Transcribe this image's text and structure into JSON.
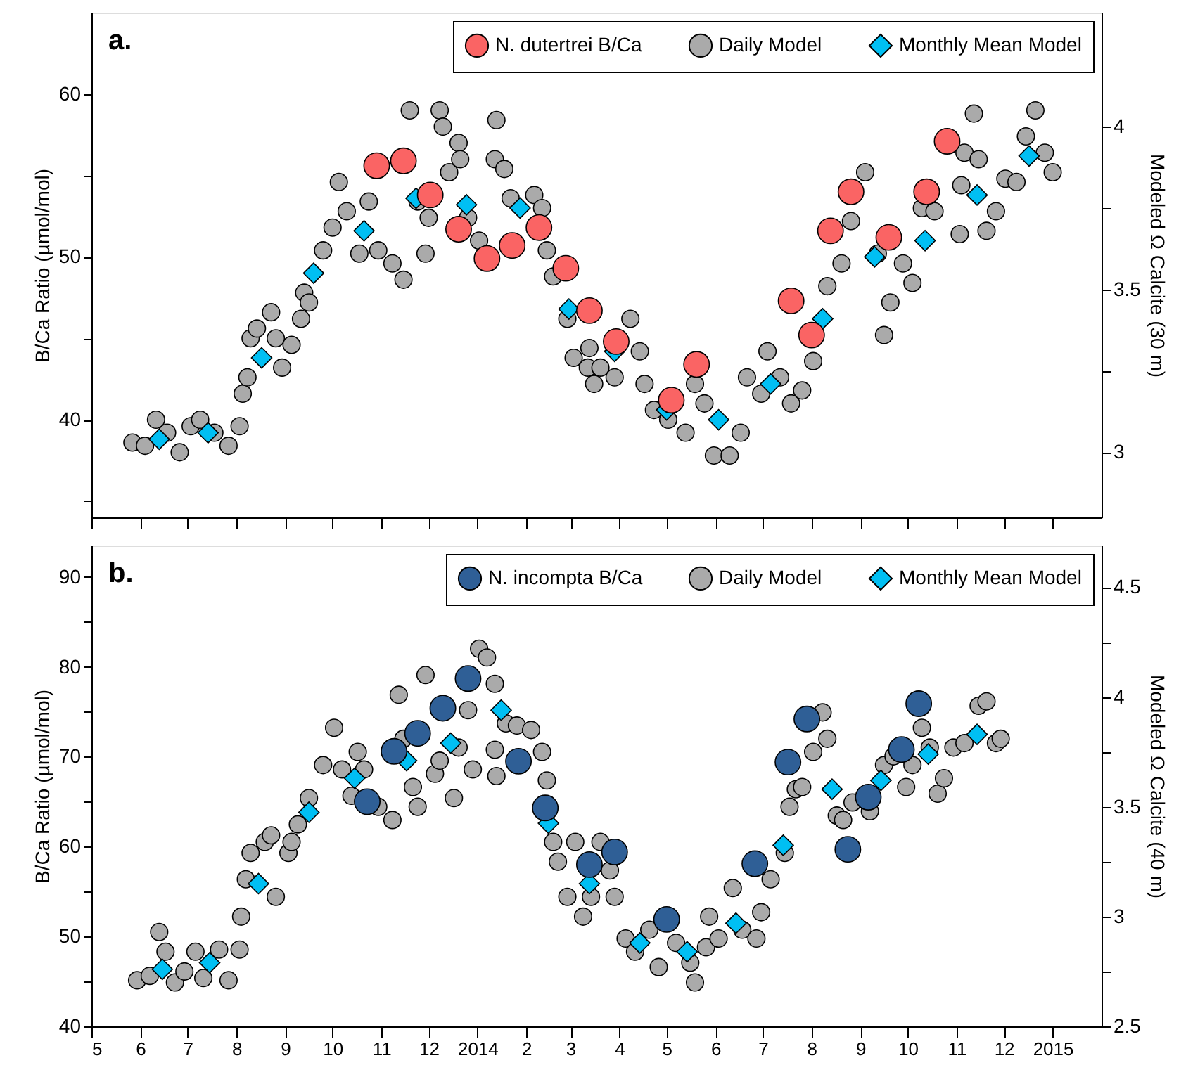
{
  "chart_data": [
    {
      "type": "scatter",
      "annotations": [
        "a."
      ],
      "ylabel": "B/Ca Ratio (µmol/mol)",
      "y2label": "Modeled Ω Calcite (30 m)",
      "xlim": [
        "2013-05-01",
        "2015-02-01"
      ],
      "xticks": [
        {
          "value": "2013-05-01",
          "label": null
        },
        {
          "value": "2013-06-01",
          "label": null
        },
        {
          "value": "2013-07-01",
          "label": null
        },
        {
          "value": "2013-08-01",
          "label": null
        },
        {
          "value": "2013-09-01",
          "label": null
        },
        {
          "value": "2013-10-01",
          "label": null
        },
        {
          "value": "2013-11-01",
          "label": null
        },
        {
          "value": "2013-12-01",
          "label": null
        },
        {
          "value": "2014-01-01",
          "label": null
        },
        {
          "value": "2014-02-01",
          "label": null
        },
        {
          "value": "2014-03-01",
          "label": null
        },
        {
          "value": "2014-04-01",
          "label": null
        },
        {
          "value": "2014-05-01",
          "label": null
        },
        {
          "value": "2014-06-01",
          "label": null
        },
        {
          "value": "2014-07-01",
          "label": null
        },
        {
          "value": "2014-08-01",
          "label": null
        },
        {
          "value": "2014-09-01",
          "label": null
        },
        {
          "value": "2014-10-01",
          "label": null
        },
        {
          "value": "2014-11-01",
          "label": null
        },
        {
          "value": "2014-12-01",
          "label": null
        },
        {
          "value": "2015-01-01",
          "label": null
        }
      ],
      "ylim": [
        34,
        65
      ],
      "yticks": [
        {
          "value": 35,
          "label": null
        },
        40,
        {
          "value": 45,
          "label": null
        },
        50,
        {
          "value": 55,
          "label": null
        },
        60
      ],
      "y2lim": [
        2.8,
        4.35
      ],
      "y2ticks": [
        3,
        {
          "value": 3.25,
          "label": null
        },
        3.5,
        {
          "value": 3.75,
          "label": null
        },
        4
      ],
      "tick_labels": "y",
      "legend": "top right",
      "series": [
        {
          "name": "N. dutertrei B/Ca",
          "color": "#fa6464",
          "marker": "circle",
          "x": [
            "2013-10-29",
            "2013-11-15",
            "2013-12-02",
            "2013-12-20",
            "2014-01-07",
            "2014-01-23",
            "2014-02-09",
            "2014-02-26",
            "2014-03-13",
            "2014-03-30",
            "2014-05-04",
            "2014-05-20",
            "2014-07-19",
            "2014-08-01",
            "2014-08-13",
            "2014-08-26",
            "2014-09-19",
            "2014-10-13",
            "2014-10-26"
          ],
          "values": [
            55.6,
            55.9,
            53.8,
            51.7,
            49.9,
            50.7,
            51.8,
            49.3,
            46.7,
            44.8,
            41.2,
            43.4,
            47.3,
            45.2,
            51.6,
            54.0,
            51.2,
            54.0,
            57.1
          ]
        },
        {
          "name": "Daily Model",
          "color": "#aaaaaa",
          "marker": "circle",
          "axis": "y2",
          "x": [
            "2013-05-27",
            "2013-06-04",
            "2013-06-11",
            "2013-06-18",
            "2013-06-26",
            "2013-07-03",
            "2013-07-09",
            "2013-07-18",
            "2013-07-27",
            "2013-08-03",
            "2013-08-05",
            "2013-08-08",
            "2013-08-10",
            "2013-08-14",
            "2013-08-23",
            "2013-08-26",
            "2013-08-30",
            "2013-09-05",
            "2013-09-11",
            "2013-09-13",
            "2013-09-16",
            "2013-09-25",
            "2013-10-01",
            "2013-10-05",
            "2013-10-10",
            "2013-10-18",
            "2013-10-24",
            "2013-10-30",
            "2013-11-08",
            "2013-11-15",
            "2013-11-19",
            "2013-11-24",
            "2013-11-29",
            "2013-12-01",
            "2013-12-08",
            "2013-12-10",
            "2013-12-14",
            "2013-12-20",
            "2013-12-21",
            "2013-12-26",
            "2014-01-02",
            "2014-01-12",
            "2014-01-13",
            "2014-01-18",
            "2014-01-22",
            "2014-02-06",
            "2014-02-11",
            "2014-02-14",
            "2014-02-18",
            "2014-02-27",
            "2014-03-03",
            "2014-03-12",
            "2014-03-13",
            "2014-03-16",
            "2014-03-20",
            "2014-03-29",
            "2014-04-08",
            "2014-04-14",
            "2014-04-17",
            "2014-04-23",
            "2014-05-02",
            "2014-05-13",
            "2014-05-19",
            "2014-05-25",
            "2014-05-31",
            "2014-06-10",
            "2014-06-17",
            "2014-06-21",
            "2014-06-30",
            "2014-07-04",
            "2014-07-12",
            "2014-07-19",
            "2014-07-26",
            "2014-08-02",
            "2014-08-11",
            "2014-08-20",
            "2014-08-26",
            "2014-09-04",
            "2014-09-12",
            "2014-09-16",
            "2014-09-20",
            "2014-09-28",
            "2014-10-04",
            "2014-10-10",
            "2014-10-18",
            "2014-11-03",
            "2014-11-04",
            "2014-11-06",
            "2014-11-12",
            "2014-11-15",
            "2014-11-20",
            "2014-11-26",
            "2014-12-02",
            "2014-12-09",
            "2014-12-15",
            "2014-12-21",
            "2014-12-27",
            "2015-01-01"
          ],
          "values": [
            3.03,
            3.02,
            3.1,
            3.06,
            3.0,
            3.08,
            3.1,
            3.06,
            3.02,
            3.08,
            3.18,
            3.23,
            3.35,
            3.38,
            3.43,
            3.35,
            3.26,
            3.33,
            3.41,
            3.49,
            3.46,
            3.62,
            3.69,
            3.83,
            3.74,
            3.61,
            3.77,
            3.62,
            3.58,
            3.53,
            4.05,
            3.77,
            3.61,
            3.72,
            4.05,
            4.0,
            3.86,
            3.95,
            3.9,
            3.72,
            3.65,
            3.9,
            4.02,
            3.87,
            3.78,
            3.79,
            3.75,
            3.62,
            3.54,
            3.41,
            3.29,
            3.26,
            3.32,
            3.21,
            3.26,
            3.23,
            3.41,
            3.31,
            3.21,
            3.13,
            3.1,
            3.06,
            3.21,
            3.15,
            2.99,
            2.99,
            3.06,
            3.23,
            3.18,
            3.31,
            3.23,
            3.15,
            3.19,
            3.28,
            3.51,
            3.58,
            3.71,
            3.86,
            3.61,
            3.36,
            3.46,
            3.58,
            3.52,
            3.75,
            3.74,
            3.67,
            3.82,
            3.92,
            4.04,
            3.9,
            3.68,
            3.74,
            3.84,
            3.83,
            3.97,
            4.05,
            3.92,
            3.86
          ]
        },
        {
          "name": "Monthly Mean Model",
          "color": "#00bff3",
          "marker": "diamond",
          "axis": "y2",
          "x": [
            "2013-06-13",
            "2013-07-14",
            "2013-08-17",
            "2013-09-19",
            "2013-10-21",
            "2013-11-23",
            "2013-12-25",
            "2014-01-28",
            "2014-02-28",
            "2014-03-29",
            "2014-05-01",
            "2014-06-03",
            "2014-07-06",
            "2014-08-08",
            "2014-09-10",
            "2014-10-12",
            "2014-11-14",
            "2014-12-17"
          ],
          "values": [
            3.04,
            3.06,
            3.29,
            3.55,
            3.68,
            3.78,
            3.76,
            3.75,
            3.44,
            3.31,
            3.13,
            3.1,
            3.21,
            3.41,
            3.6,
            3.65,
            3.79,
            3.91
          ]
        }
      ]
    },
    {
      "type": "scatter",
      "annotations": [
        "b."
      ],
      "ylabel": "B/Ca Ratio (µmol/mol)",
      "y2label": "Modeled Ω Calcite (40 m)",
      "xlim": [
        "2013-05-01",
        "2015-02-01"
      ],
      "xticks": [
        {
          "value": "2013-05-01",
          "label": "5"
        },
        {
          "value": "2013-06-01",
          "label": "6"
        },
        {
          "value": "2013-07-01",
          "label": "7"
        },
        {
          "value": "2013-08-01",
          "label": "8"
        },
        {
          "value": "2013-09-01",
          "label": "9"
        },
        {
          "value": "2013-10-01",
          "label": "10"
        },
        {
          "value": "2013-11-01",
          "label": "11"
        },
        {
          "value": "2013-12-01",
          "label": "12"
        },
        {
          "value": "2014-01-01",
          "label": "2014"
        },
        {
          "value": "2014-02-01",
          "label": "2"
        },
        {
          "value": "2014-03-01",
          "label": "3"
        },
        {
          "value": "2014-04-01",
          "label": "4"
        },
        {
          "value": "2014-05-01",
          "label": "5"
        },
        {
          "value": "2014-06-01",
          "label": "6"
        },
        {
          "value": "2014-07-01",
          "label": "7"
        },
        {
          "value": "2014-08-01",
          "label": "8"
        },
        {
          "value": "2014-09-01",
          "label": "9"
        },
        {
          "value": "2014-10-01",
          "label": "10"
        },
        {
          "value": "2014-11-01",
          "label": "11"
        },
        {
          "value": "2014-12-01",
          "label": "12"
        },
        {
          "value": "2015-01-01",
          "label": "2015"
        }
      ],
      "ylim": [
        40,
        93.5
      ],
      "yticks": [
        40,
        {
          "value": 45,
          "label": null
        },
        50,
        {
          "value": 55,
          "label": null
        },
        60,
        {
          "value": 65,
          "label": null
        },
        70,
        {
          "value": 75,
          "label": null
        },
        80,
        {
          "value": 85,
          "label": null
        },
        90
      ],
      "y2lim": [
        2.5,
        4.69
      ],
      "y2ticks": [
        2.5,
        {
          "value": 2.75,
          "label": null
        },
        3,
        {
          "value": 3.25,
          "label": null
        },
        3.5,
        {
          "value": 3.75,
          "label": null
        },
        4,
        {
          "value": 4.25,
          "label": null
        },
        4.5
      ],
      "legend": "top right",
      "series": [
        {
          "name": "N. incompta B/Ca",
          "color": "#2f5f96",
          "marker": "circle",
          "x": [
            "2013-10-23",
            "2013-11-09",
            "2013-11-24",
            "2013-12-10",
            "2013-12-26",
            "2014-01-27",
            "2014-02-13",
            "2014-03-13",
            "2014-03-29",
            "2014-05-01",
            "2014-06-26",
            "2014-07-17",
            "2014-07-29",
            "2014-08-24",
            "2014-09-06",
            "2014-09-27",
            "2014-10-08"
          ],
          "values": [
            65.0,
            70.6,
            72.6,
            75.4,
            78.7,
            69.5,
            64.3,
            58.0,
            59.4,
            51.9,
            58.1,
            69.4,
            74.2,
            59.7,
            65.5,
            70.8,
            75.9
          ]
        },
        {
          "name": "Daily Model",
          "color": "#aaaaaa",
          "marker": "circle",
          "axis": "y2",
          "x": [
            "2013-05-30",
            "2013-06-07",
            "2013-06-13",
            "2013-06-17",
            "2013-06-23",
            "2013-06-29",
            "2013-07-06",
            "2013-07-11",
            "2013-07-21",
            "2013-07-27",
            "2013-08-03",
            "2013-08-04",
            "2013-08-07",
            "2013-08-10",
            "2013-08-19",
            "2013-08-23",
            "2013-08-26",
            "2013-09-03",
            "2013-09-05",
            "2013-09-09",
            "2013-09-16",
            "2013-09-25",
            "2013-10-02",
            "2013-10-07",
            "2013-10-13",
            "2013-10-17",
            "2013-10-21",
            "2013-10-30",
            "2013-11-08",
            "2013-11-12",
            "2013-11-15",
            "2013-11-21",
            "2013-11-24",
            "2013-11-29",
            "2013-12-05",
            "2013-12-08",
            "2013-12-17",
            "2013-12-20",
            "2013-12-26",
            "2013-12-29",
            "2014-01-02",
            "2014-01-07",
            "2014-01-12",
            "2014-01-12",
            "2014-01-13",
            "2014-01-19",
            "2014-01-26",
            "2014-02-04",
            "2014-02-11",
            "2014-02-14",
            "2014-02-18",
            "2014-02-21",
            "2014-02-27",
            "2014-03-04",
            "2014-03-09",
            "2014-03-14",
            "2014-03-20",
            "2014-03-26",
            "2014-03-29",
            "2014-04-05",
            "2014-04-11",
            "2014-04-20",
            "2014-04-26",
            "2014-05-07",
            "2014-05-16",
            "2014-05-19",
            "2014-05-26",
            "2014-05-28",
            "2014-06-03",
            "2014-06-12",
            "2014-06-18",
            "2014-06-27",
            "2014-06-30",
            "2014-07-06",
            "2014-07-15",
            "2014-07-18",
            "2014-07-22",
            "2014-07-26",
            "2014-08-02",
            "2014-08-08",
            "2014-08-11",
            "2014-08-17",
            "2014-08-21",
            "2014-08-27",
            "2014-09-07",
            "2014-09-16",
            "2014-09-22",
            "2014-09-30",
            "2014-10-04",
            "2014-10-10",
            "2014-10-15",
            "2014-10-20",
            "2014-10-24",
            "2014-10-30",
            "2014-11-06",
            "2014-11-15",
            "2014-11-20",
            "2014-11-26",
            "2014-11-29"
          ],
          "values": [
            2.71,
            2.73,
            2.93,
            2.84,
            2.7,
            2.75,
            2.84,
            2.72,
            2.85,
            2.71,
            2.85,
            3.0,
            3.17,
            3.29,
            3.34,
            3.37,
            3.09,
            3.29,
            3.34,
            3.42,
            3.54,
            3.69,
            3.86,
            3.67,
            3.55,
            3.75,
            3.67,
            3.5,
            3.44,
            4.01,
            3.81,
            3.59,
            3.5,
            4.1,
            3.65,
            3.71,
            3.54,
            3.77,
            3.94,
            3.67,
            4.22,
            4.18,
            4.06,
            3.76,
            3.64,
            3.88,
            3.87,
            3.85,
            3.75,
            3.62,
            3.34,
            3.25,
            3.09,
            3.34,
            3.0,
            3.09,
            3.34,
            3.21,
            3.09,
            2.9,
            2.84,
            2.94,
            2.77,
            2.88,
            2.79,
            2.7,
            2.86,
            3.0,
            2.9,
            3.13,
            2.94,
            2.9,
            3.02,
            3.17,
            3.29,
            3.5,
            3.58,
            3.59,
            3.75,
            3.93,
            3.81,
            3.46,
            3.44,
            3.52,
            3.48,
            3.69,
            3.73,
            3.59,
            3.69,
            3.86,
            3.77,
            3.56,
            3.63,
            3.77,
            3.79,
            3.96,
            3.98,
            3.79,
            3.81
          ]
        },
        {
          "name": "Monthly Mean Model",
          "color": "#00bff3",
          "marker": "diamond",
          "axis": "y2",
          "x": [
            "2013-06-15",
            "2013-07-15",
            "2013-08-15",
            "2013-09-16",
            "2013-10-15",
            "2013-11-17",
            "2013-12-15",
            "2014-01-16",
            "2014-02-15",
            "2014-03-13",
            "2014-04-14",
            "2014-05-14",
            "2014-06-14",
            "2014-07-14",
            "2014-08-14",
            "2014-09-14",
            "2014-10-14",
            "2014-11-14"
          ],
          "values": [
            2.76,
            2.79,
            3.15,
            3.475,
            3.63,
            3.71,
            3.79,
            3.94,
            3.425,
            3.15,
            2.88,
            2.84,
            2.97,
            3.325,
            3.58,
            3.62,
            3.74,
            3.83
          ]
        }
      ]
    }
  ]
}
